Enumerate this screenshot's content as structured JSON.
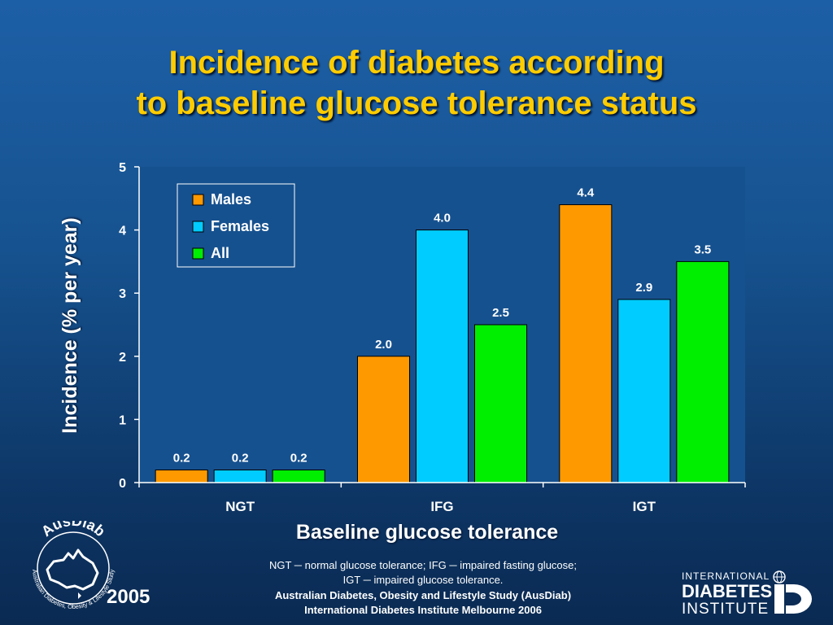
{
  "title_line1": "Incidence of diabetes according",
  "title_line2": "to baseline glucose tolerance status",
  "chart_data": {
    "type": "bar",
    "categories": [
      "NGT",
      "IFG",
      "IGT"
    ],
    "series": [
      {
        "name": "Males",
        "color": "#ff9900",
        "values": [
          0.2,
          2.0,
          4.4
        ],
        "labels": [
          "0.2",
          "2.0",
          "4.4"
        ]
      },
      {
        "name": "Females",
        "color": "#00ccff",
        "values": [
          0.2,
          4.0,
          2.9
        ],
        "labels": [
          "0.2",
          "4.0",
          "2.9"
        ]
      },
      {
        "name": "All",
        "color": "#00ee00",
        "values": [
          0.2,
          2.5,
          3.5
        ],
        "labels": [
          "0.2",
          "2.5",
          "3.5"
        ]
      }
    ],
    "ylim": [
      0,
      5
    ],
    "yticks": [
      "0",
      "1",
      "2",
      "3",
      "4",
      "5"
    ],
    "xlabel": "Baseline glucose tolerance",
    "ylabel": "Incidence (% per year)",
    "legend_position": "top-left",
    "plot_background": "#16518f"
  },
  "notes": {
    "line1": "NGT ─ normal glucose tolerance; IFG ─ impaired fasting glucose;",
    "line2": "IGT ─ impaired glucose tolerance.",
    "credit1": "Australian Diabetes, Obesity and Lifestyle Study (AusDiab)",
    "credit2": "International Diabetes Institute Melbourne 2006"
  },
  "logos": {
    "ausdiab_name": "AusDiab",
    "ausdiab_ring_text": "Australian Diabetes, Obesity & Lifestyle Study",
    "year": "2005",
    "idi_line1": "INTERNATIONAL",
    "idi_line2": "DIABETES",
    "idi_line3": "INSTITUTE"
  }
}
